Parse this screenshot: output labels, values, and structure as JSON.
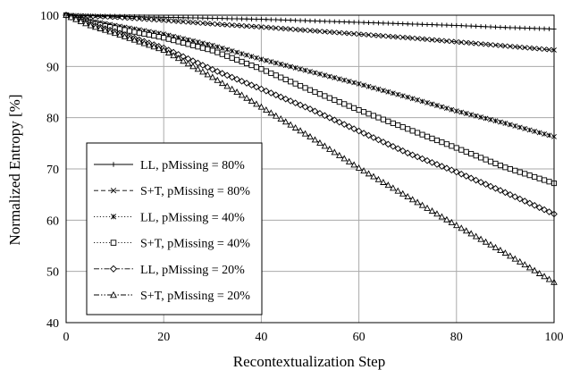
{
  "chart_data": {
    "type": "line",
    "xlabel": "Recontextualization Step",
    "ylabel": "Normalized Entropy [%]",
    "xlim": [
      0,
      100
    ],
    "ylim": [
      40,
      100
    ],
    "xticks": [
      0,
      20,
      40,
      60,
      80,
      100
    ],
    "yticks": [
      40,
      50,
      60,
      70,
      80,
      90,
      100
    ],
    "grid": true,
    "legend_position": "bottom-left",
    "series": [
      {
        "name": "LL, pMissing = 80%",
        "marker": "plus",
        "dash": "solid",
        "x": [
          0,
          10,
          20,
          30,
          40,
          50,
          60,
          70,
          80,
          90,
          100
        ],
        "y": [
          100,
          99.8,
          99.6,
          99.4,
          99.2,
          98.9,
          98.6,
          98.3,
          98.0,
          97.6,
          97.3
        ]
      },
      {
        "name": "S+T, pMissing = 80%",
        "marker": "cross",
        "dash": "dashed",
        "x": [
          0,
          10,
          20,
          30,
          40,
          50,
          60,
          70,
          80,
          90,
          100
        ],
        "y": [
          100,
          99.6,
          99.0,
          98.3,
          97.7,
          97.0,
          96.3,
          95.6,
          94.8,
          94.0,
          93.2
        ]
      },
      {
        "name": "LL, pMissing = 40%",
        "marker": "asterisk",
        "dash": "dotted",
        "x": [
          0,
          5,
          10,
          20,
          30,
          40,
          50,
          60,
          70,
          80,
          90,
          100
        ],
        "y": [
          100,
          98.9,
          98.0,
          96.3,
          94.1,
          91.4,
          89.0,
          86.6,
          84.0,
          81.3,
          78.9,
          76.3
        ]
      },
      {
        "name": "S+T, pMissing = 40%",
        "marker": "square",
        "dash": "dotted",
        "x": [
          0,
          5,
          10,
          20,
          30,
          40,
          50,
          60,
          70,
          80,
          90,
          100
        ],
        "y": [
          100,
          98.5,
          97.5,
          95.6,
          93.1,
          89.5,
          85.4,
          81.5,
          77.8,
          74.1,
          70.3,
          67.2
        ]
      },
      {
        "name": "LL, pMissing = 20%",
        "marker": "diamond",
        "dash": "dashdot",
        "x": [
          0,
          5,
          10,
          20,
          30,
          40,
          50,
          60,
          70,
          80,
          90,
          100
        ],
        "y": [
          100,
          98.2,
          96.8,
          93.6,
          89.4,
          85.6,
          81.7,
          77.4,
          73.1,
          69.4,
          65.4,
          61.2
        ]
      },
      {
        "name": "S+T, pMissing = 20%",
        "marker": "triangle",
        "dash": "dashdotdot",
        "x": [
          0,
          5,
          10,
          20,
          30,
          40,
          50,
          60,
          70,
          80,
          90,
          100
        ],
        "y": [
          100,
          98.0,
          96.5,
          93.2,
          87.9,
          82.1,
          76.3,
          70.2,
          64.6,
          59.0,
          53.6,
          47.9
        ]
      }
    ]
  }
}
